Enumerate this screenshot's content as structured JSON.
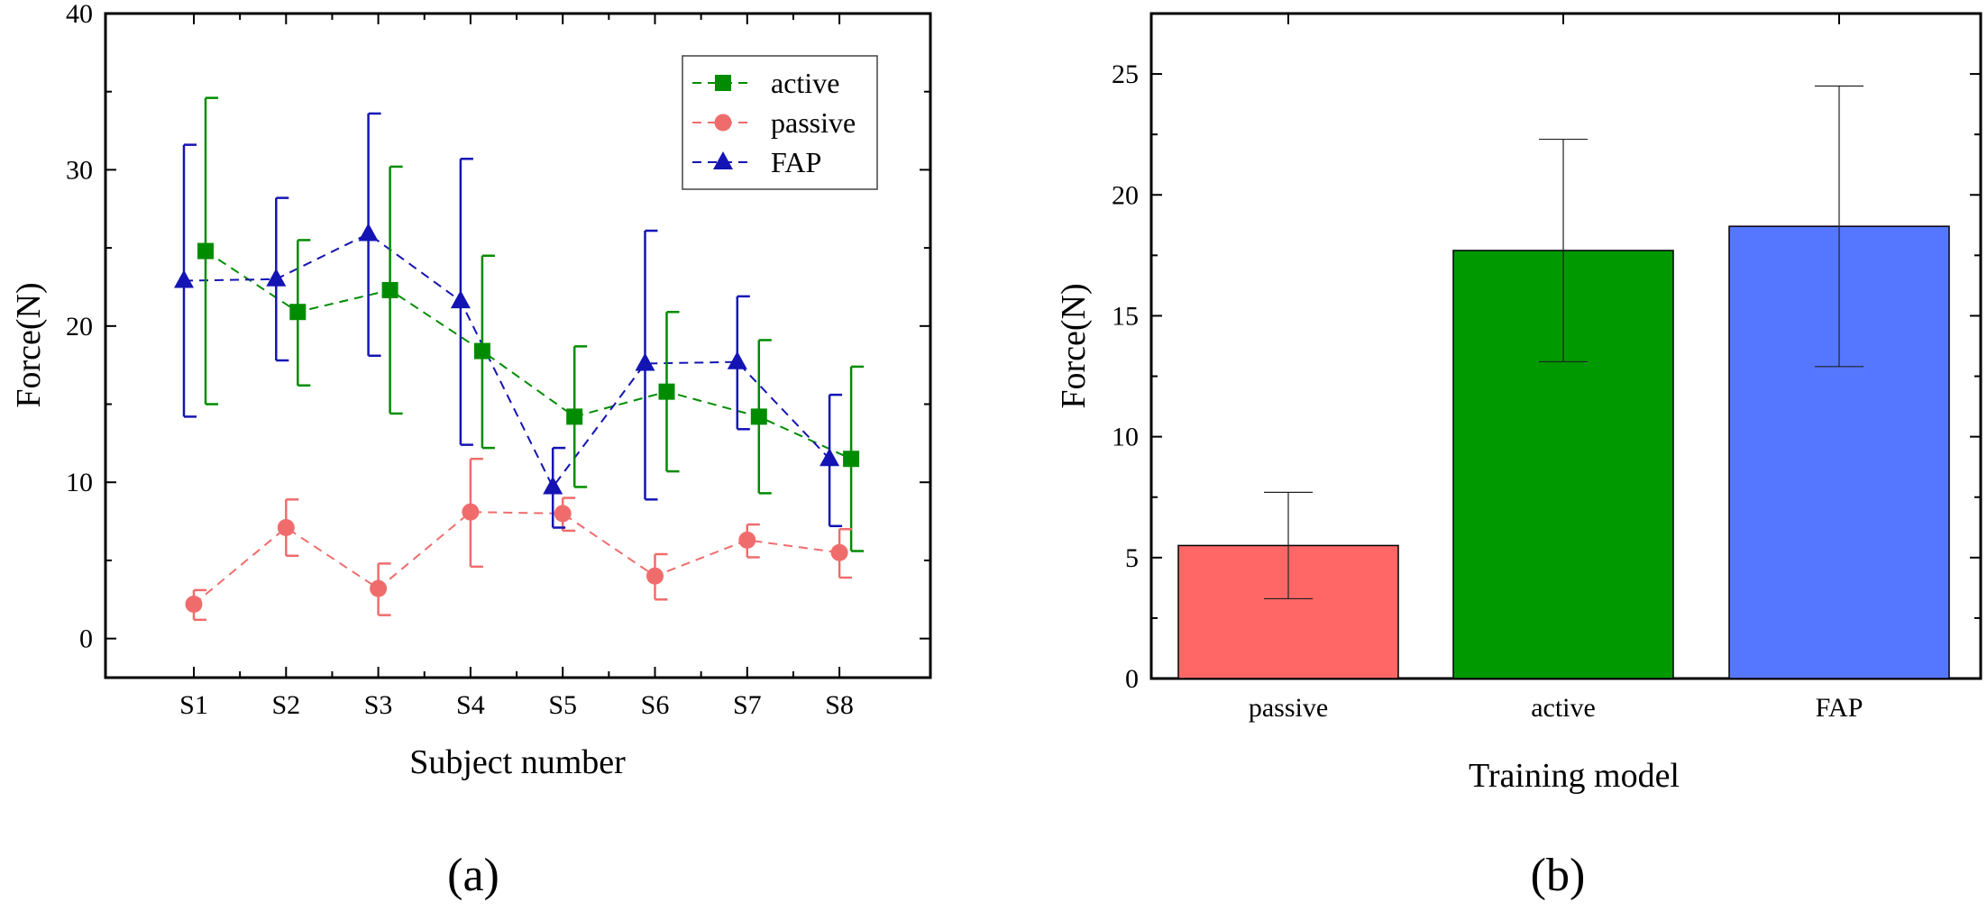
{
  "colors": {
    "active": "#008c00",
    "passive": "#f06c6c",
    "fap": "#1414b4",
    "bar_passive": "#ff6666",
    "bar_active": "#009900",
    "bar_fap": "#5577ff"
  },
  "chart_data": [
    {
      "type": "line",
      "panel_label": "(a)",
      "title": "",
      "xlabel": "Subject number",
      "ylabel": "Force(N)",
      "ylim": [
        -2.5,
        40
      ],
      "yticks": [
        "0",
        "10",
        "20",
        "30",
        "40"
      ],
      "categories": [
        "S1",
        "S2",
        "S3",
        "S4",
        "S5",
        "S6",
        "S7",
        "S8"
      ],
      "legend_position": "top-right",
      "series": [
        {
          "key": "active",
          "name": "active",
          "marker": "square",
          "values": [
            24.8,
            20.9,
            22.3,
            18.4,
            14.2,
            15.8,
            14.2,
            11.5
          ],
          "err_upper": [
            34.6,
            25.5,
            30.2,
            24.5,
            18.7,
            20.9,
            19.1,
            17.4
          ],
          "err_lower": [
            15.0,
            16.2,
            14.4,
            12.2,
            9.7,
            10.7,
            9.3,
            5.6
          ]
        },
        {
          "key": "passive",
          "name": "passive",
          "marker": "circle",
          "values": [
            2.2,
            7.1,
            3.2,
            8.1,
            8.0,
            4.0,
            6.3,
            5.5
          ],
          "err_upper": [
            3.1,
            8.9,
            4.8,
            11.5,
            9.0,
            5.4,
            7.3,
            7.0
          ],
          "err_lower": [
            1.2,
            5.3,
            1.5,
            4.6,
            6.9,
            2.5,
            5.2,
            3.9
          ]
        },
        {
          "key": "fap",
          "name": "FAP",
          "marker": "triangle",
          "values": [
            22.9,
            23.0,
            25.9,
            21.6,
            9.7,
            17.6,
            17.7,
            11.5
          ],
          "err_upper": [
            31.6,
            28.2,
            33.6,
            30.7,
            12.2,
            26.1,
            21.9,
            15.6
          ],
          "err_lower": [
            14.2,
            17.8,
            18.1,
            12.4,
            7.1,
            8.9,
            13.4,
            7.2
          ]
        }
      ]
    },
    {
      "type": "bar",
      "panel_label": "(b)",
      "title": "",
      "xlabel": "Training model",
      "ylabel": "Force(N)",
      "ylim": [
        0,
        27.5
      ],
      "yticks": [
        "0",
        "5",
        "10",
        "15",
        "20",
        "25"
      ],
      "categories": [
        "passive",
        "active",
        "FAP"
      ],
      "values": [
        5.5,
        17.7,
        18.7
      ],
      "err_upper": [
        7.7,
        22.3,
        24.5
      ],
      "err_lower": [
        3.3,
        13.1,
        12.9
      ]
    }
  ]
}
